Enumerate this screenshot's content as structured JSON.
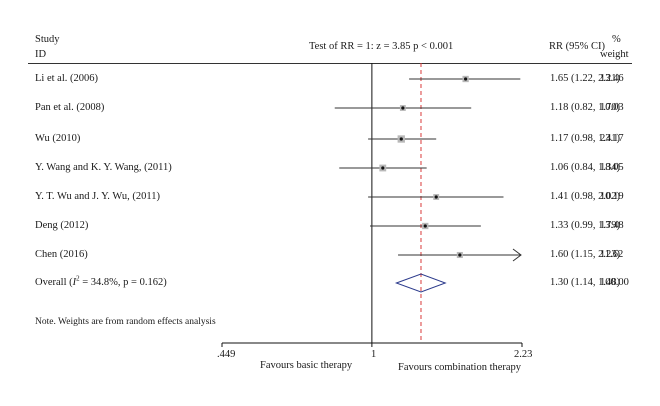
{
  "header": {
    "study_line1": "Study",
    "study_line2": "ID",
    "test_text": "Test of RR = 1: z = 3.85 p < 0.001",
    "ci_header": "RR (95% CI)",
    "weight_line1": "%",
    "weight_line2": "weight"
  },
  "note": "Note. Weights are from random effects analysis",
  "footer": {
    "left_label": "Favours basic therapy",
    "right_label": "Favours combination therapy"
  },
  "chart_data": {
    "type": "forest",
    "axis": {
      "min": 0.449,
      "max": 2.23,
      "null_value": 1,
      "pooled_line": 1.3,
      "scale": "log",
      "tick_labels": [
        ".449",
        "1",
        "2.23"
      ]
    },
    "studies": [
      {
        "name": "Li et al. (2006)",
        "rr": 1.65,
        "lower": 1.22,
        "upper": 2.21,
        "ci_text": "1.65 (1.22, 2.21)",
        "weight": "13.46"
      },
      {
        "name": "Pan et al. (2008)",
        "rr": 1.18,
        "lower": 0.82,
        "upper": 1.7,
        "ci_text": "1.18 (0.82, 1.70)",
        "weight": "10.03"
      },
      {
        "name": "Wu (2010)",
        "rr": 1.17,
        "lower": 0.98,
        "upper": 1.41,
        "ci_text": "1.17 (0.98, 1.41)",
        "weight": "23.17"
      },
      {
        "name": "Y. Wang and K. Y. Wang, (2011)",
        "rr": 1.06,
        "lower": 0.84,
        "upper": 1.34,
        "ci_text": "1.06 (0.84, 1.34)",
        "weight": "18.05"
      },
      {
        "name": "Y. T. Wu and J. Y. Wu, (2011)",
        "rr": 1.41,
        "lower": 0.98,
        "upper": 2.02,
        "ci_text": "1.41 (0.98, 2.02)",
        "weight": "10.19"
      },
      {
        "name": "Deng (2012)",
        "rr": 1.33,
        "lower": 0.99,
        "upper": 1.79,
        "ci_text": "1.33 (0.99, 1.79)",
        "weight": "13.48"
      },
      {
        "name": "Chen (2016)",
        "rr": 1.6,
        "lower": 1.15,
        "upper": 2.23,
        "ci_text": "1.60 (1.15, 2.23)",
        "weight": "11.62",
        "arrow_right": true
      }
    ],
    "overall": {
      "name_prefix": "Overall (",
      "i2_letter": "I",
      "i2_sup": "2",
      "name_suffix": " = 34.8%, p = 0.162)",
      "rr": 1.3,
      "lower": 1.14,
      "upper": 1.48,
      "ci_text": "1.30 (1.14, 1.48)",
      "weight": "100.00"
    }
  }
}
